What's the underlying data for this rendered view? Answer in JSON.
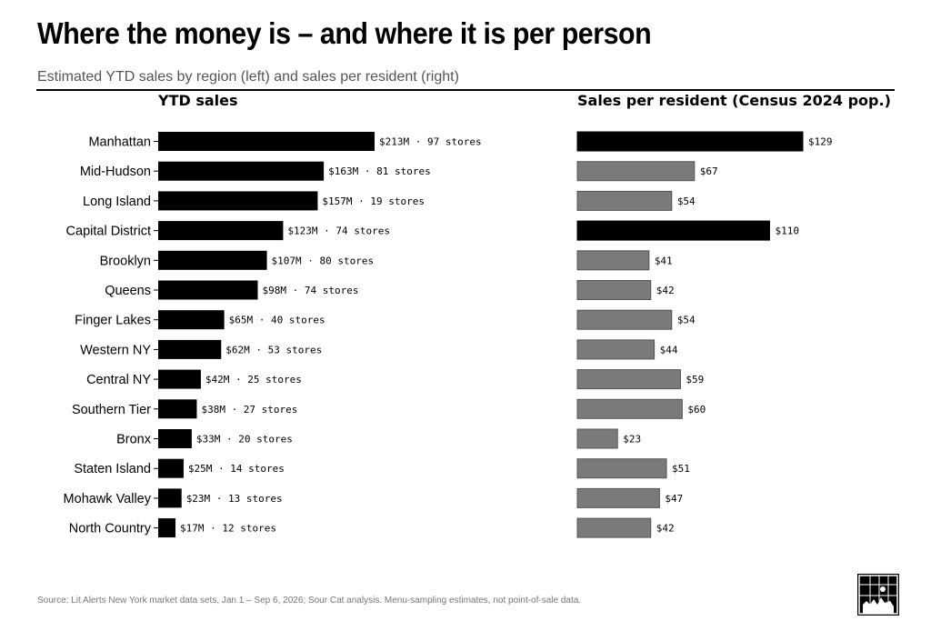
{
  "title": "Where the money is – and where it is per person",
  "subtitle": "Estimated YTD sales by region (left) and sales per resident (right)",
  "source": "Source: Lit Alerts New York market data sets, Jan 1 – Sep 6, 2026; Sour Cat analysis. Menu-sampling estimates, not point-of-sale data.",
  "logo_text": "SOUR CAT",
  "colors": {
    "primary": "#000000",
    "secondary": "#7a7a7a",
    "secondary_border": "#555555"
  },
  "chart_data": [
    {
      "type": "bar",
      "orientation": "horizontal",
      "title": "YTD sales",
      "categories": [
        "Manhattan",
        "Mid-Hudson",
        "Long Island",
        "Capital District",
        "Brooklyn",
        "Queens",
        "Finger Lakes",
        "Western NY",
        "Central NY",
        "Southern Tier",
        "Bronx",
        "Staten Island",
        "Mohawk Valley",
        "North Country"
      ],
      "values": [
        213,
        163,
        157,
        123,
        107,
        98,
        65,
        62,
        42,
        38,
        33,
        25,
        23,
        17
      ],
      "labels": [
        "$213M · 97 stores",
        "$163M · 81 stores",
        "$157M · 19 stores",
        "$123M · 74 stores",
        "$107M · 80 stores",
        "$98M · 74 stores",
        "$65M · 40 stores",
        "$62M · 53 stores",
        "$42M · 25 stores",
        "$38M · 27 stores",
        "$33M · 20 stores",
        "$25M · 14 stores",
        "$23M · 13 stores",
        "$17M · 12 stores"
      ],
      "xlim": [
        0,
        213
      ],
      "grid": false
    },
    {
      "type": "bar",
      "orientation": "horizontal",
      "title": "Sales per resident (Census 2024 pop.)",
      "categories": [
        "Manhattan",
        "Mid-Hudson",
        "Long Island",
        "Capital District",
        "Brooklyn",
        "Queens",
        "Finger Lakes",
        "Western NY",
        "Central NY",
        "Southern Tier",
        "Bronx",
        "Staten Island",
        "Mohawk Valley",
        "North Country"
      ],
      "values": [
        129,
        67,
        54,
        110,
        41,
        42,
        54,
        44,
        59,
        60,
        23,
        51,
        47,
        42
      ],
      "labels": [
        "$129",
        "$67",
        "$54",
        "$110",
        "$41",
        "$42",
        "$54",
        "$44",
        "$59",
        "$60",
        "$23",
        "$51",
        "$47",
        "$42"
      ],
      "highlighted": [
        "Manhattan",
        "Capital District"
      ],
      "xlim": [
        0,
        129
      ],
      "grid": false
    }
  ]
}
